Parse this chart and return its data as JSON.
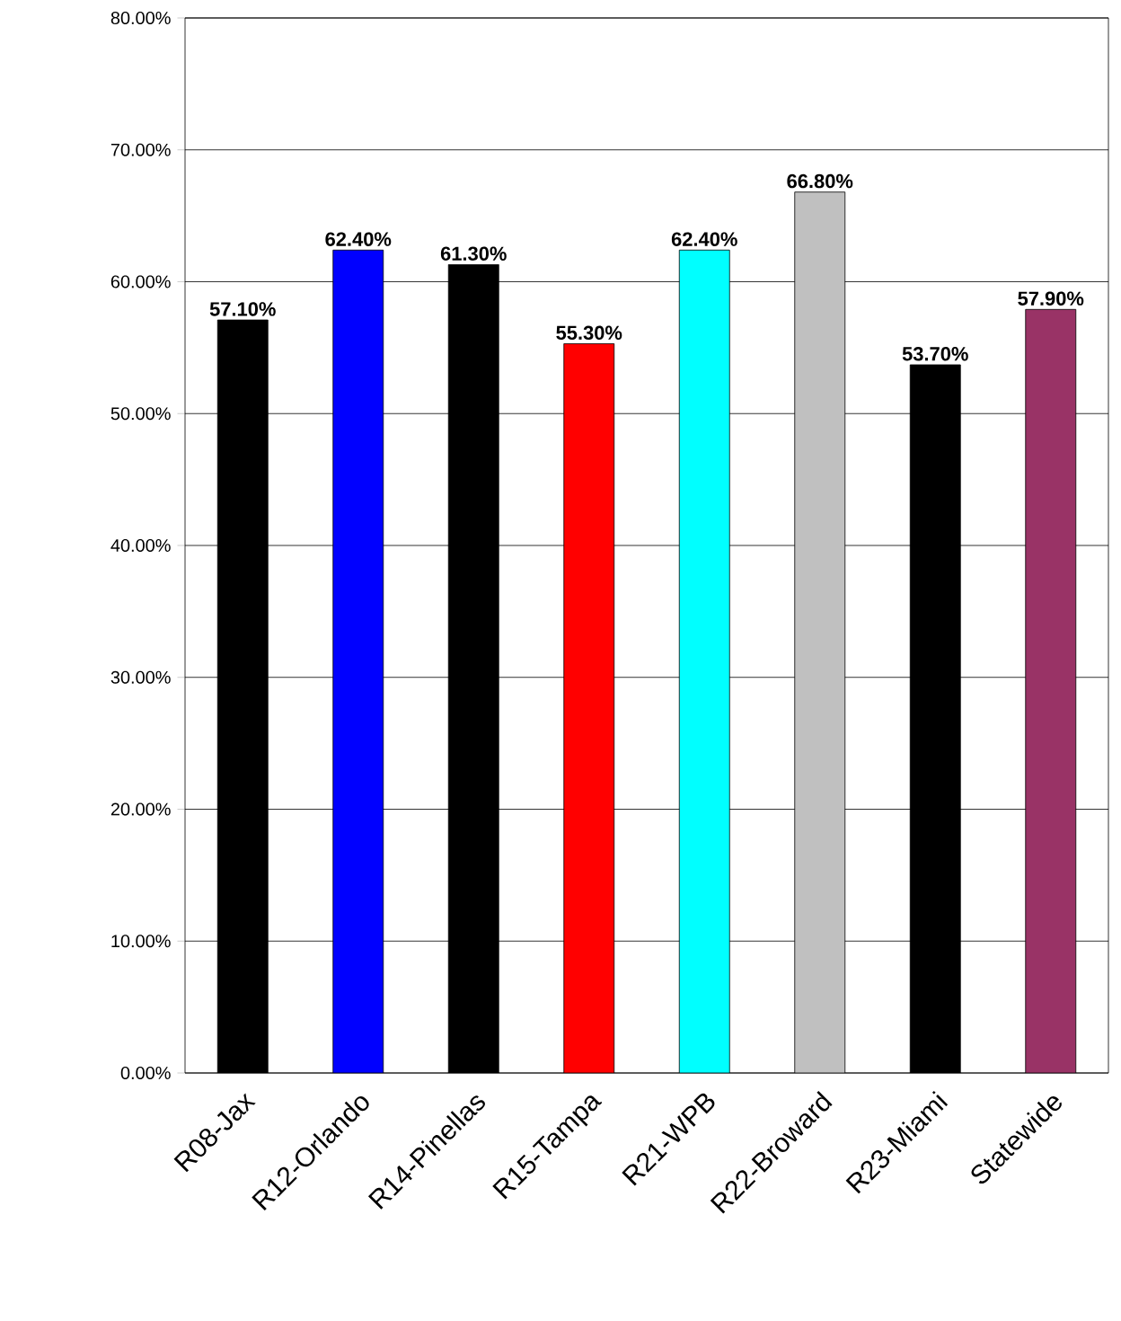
{
  "chart_data": {
    "type": "bar",
    "categories": [
      "R08-Jax",
      "R12-Orlando",
      "R14-Pinellas",
      "R15-Tampa",
      "R21-WPB",
      "R22-Broward",
      "R23-Miami",
      "Statewide"
    ],
    "values": [
      57.1,
      62.4,
      61.3,
      55.3,
      62.4,
      66.8,
      53.7,
      57.9
    ],
    "colors": [
      "#000000",
      "#0000ff",
      "#000000",
      "#ff0000",
      "#00ffff",
      "#c0c0c0",
      "#000000",
      "#993366"
    ],
    "value_labels": [
      "57.10%",
      "62.40%",
      "61.30%",
      "55.30%",
      "62.40%",
      "66.80%",
      "53.70%",
      "57.90%"
    ],
    "ylim": [
      0,
      80
    ],
    "yticks": [
      {
        "value": 0,
        "label": "0.00%"
      },
      {
        "value": 10,
        "label": "10.00%"
      },
      {
        "value": 20,
        "label": "20.00%"
      },
      {
        "value": 30,
        "label": "30.00%"
      },
      {
        "value": 40,
        "label": "40.00%"
      },
      {
        "value": 50,
        "label": "50.00%"
      },
      {
        "value": 60,
        "label": "60.00%"
      },
      {
        "value": 70,
        "label": "70.00%"
      },
      {
        "value": 80,
        "label": "80.00%"
      }
    ],
    "grid": "y"
  }
}
